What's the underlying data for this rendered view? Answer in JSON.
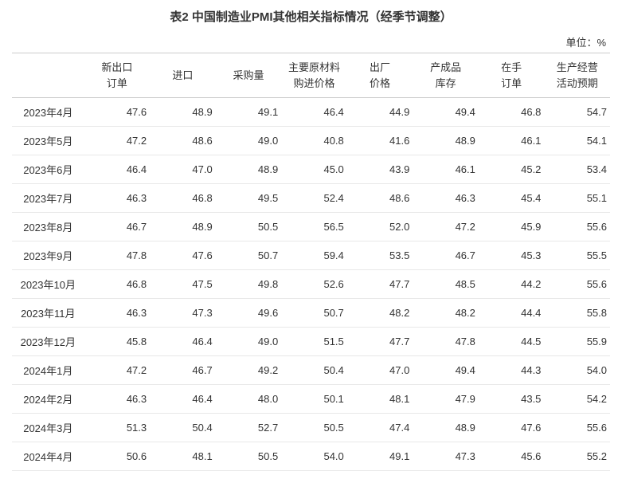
{
  "table": {
    "title": "表2 中国制造业PMI其他相关指标情况（经季节调整）",
    "unit": "单位：%",
    "columns": [
      "新出口订单",
      "进口",
      "采购量",
      "主要原材料购进价格",
      "出厂价格",
      "产成品库存",
      "在手订单",
      "生产经营活动预期"
    ],
    "columns_multiline": [
      [
        "新出口",
        "订单"
      ],
      [
        "进口"
      ],
      [
        "采购量"
      ],
      [
        "主要原材料",
        "购进价格"
      ],
      [
        "出厂",
        "价格"
      ],
      [
        "产成品",
        "库存"
      ],
      [
        "在手",
        "订单"
      ],
      [
        "生产经营",
        "活动预期"
      ]
    ],
    "rows": [
      {
        "label": "2023年4月",
        "values": [
          "47.6",
          "48.9",
          "49.1",
          "46.4",
          "44.9",
          "49.4",
          "46.8",
          "54.7"
        ]
      },
      {
        "label": "2023年5月",
        "values": [
          "47.2",
          "48.6",
          "49.0",
          "40.8",
          "41.6",
          "48.9",
          "46.1",
          "54.1"
        ]
      },
      {
        "label": "2023年6月",
        "values": [
          "46.4",
          "47.0",
          "48.9",
          "45.0",
          "43.9",
          "46.1",
          "45.2",
          "53.4"
        ]
      },
      {
        "label": "2023年7月",
        "values": [
          "46.3",
          "46.8",
          "49.5",
          "52.4",
          "48.6",
          "46.3",
          "45.4",
          "55.1"
        ]
      },
      {
        "label": "2023年8月",
        "values": [
          "46.7",
          "48.9",
          "50.5",
          "56.5",
          "52.0",
          "47.2",
          "45.9",
          "55.6"
        ]
      },
      {
        "label": "2023年9月",
        "values": [
          "47.8",
          "47.6",
          "50.7",
          "59.4",
          "53.5",
          "46.7",
          "45.3",
          "55.5"
        ]
      },
      {
        "label": "2023年10月",
        "values": [
          "46.8",
          "47.5",
          "49.8",
          "52.6",
          "47.7",
          "48.5",
          "44.2",
          "55.6"
        ]
      },
      {
        "label": "2023年11月",
        "values": [
          "46.3",
          "47.3",
          "49.6",
          "50.7",
          "48.2",
          "48.2",
          "44.4",
          "55.8"
        ]
      },
      {
        "label": "2023年12月",
        "values": [
          "45.8",
          "46.4",
          "49.0",
          "51.5",
          "47.7",
          "47.8",
          "44.5",
          "55.9"
        ]
      },
      {
        "label": "2024年1月",
        "values": [
          "47.2",
          "46.7",
          "49.2",
          "50.4",
          "47.0",
          "49.4",
          "44.3",
          "54.0"
        ]
      },
      {
        "label": "2024年2月",
        "values": [
          "46.3",
          "46.4",
          "48.0",
          "50.1",
          "48.1",
          "47.9",
          "43.5",
          "54.2"
        ]
      },
      {
        "label": "2024年3月",
        "values": [
          "51.3",
          "50.4",
          "52.7",
          "50.5",
          "47.4",
          "48.9",
          "47.6",
          "55.6"
        ]
      },
      {
        "label": "2024年4月",
        "values": [
          "50.6",
          "48.1",
          "50.5",
          "54.0",
          "49.1",
          "47.3",
          "45.6",
          "55.2"
        ]
      }
    ],
    "colors": {
      "background": "#ffffff",
      "text": "#333333",
      "header_border": "#cccccc",
      "row_border": "#e8e8e8"
    },
    "fontsize": {
      "title": 15,
      "unit": 13,
      "cell": 13
    }
  }
}
